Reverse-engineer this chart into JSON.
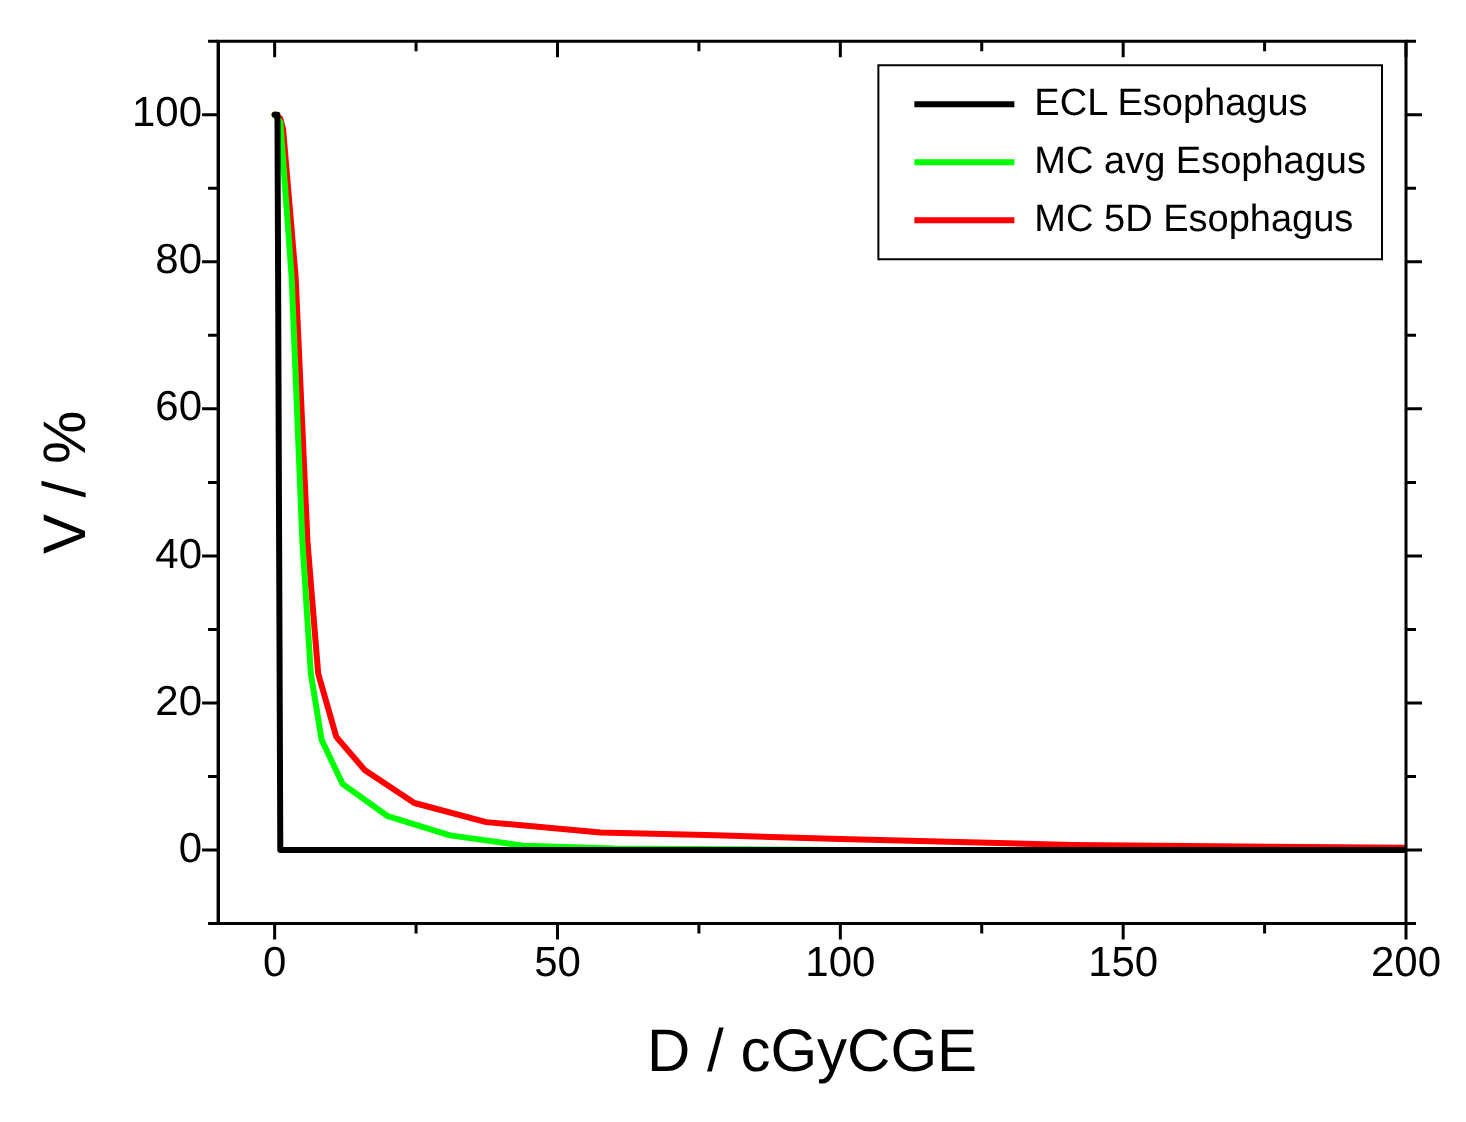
{
  "chart_data": {
    "type": "line",
    "xlabel": "D / cGyCGE",
    "ylabel": "V / %",
    "xlim": [
      -10,
      200
    ],
    "xticks": [
      0,
      {
        "value": 25,
        "label": null
      },
      50,
      {
        "value": 75,
        "label": null
      },
      100,
      {
        "value": 125,
        "label": null
      },
      150,
      {
        "value": 175,
        "label": null
      },
      200
    ],
    "ylim": [
      -10,
      110
    ],
    "yticks": [
      {
        "value": -10,
        "label": null
      },
      0,
      {
        "value": 10,
        "label": null
      },
      20,
      {
        "value": 30,
        "label": null
      },
      40,
      {
        "value": 50,
        "label": null
      },
      60,
      {
        "value": 70,
        "label": null
      },
      80,
      {
        "value": 90,
        "label": null
      },
      100,
      {
        "value": 110,
        "label": null
      }
    ],
    "grid": false,
    "legend": "top right",
    "marker": "none",
    "line_style": "solid",
    "series": [
      {
        "name": "ECL Esophagus",
        "color": "#000000",
        "x": [
          0,
          0.5,
          1,
          200
        ],
        "values": [
          100,
          100,
          0,
          0
        ]
      },
      {
        "name": "MC avg Esophagus",
        "color": "#00ff00",
        "x": [
          0,
          1,
          3,
          4.9,
          6.4,
          8.3,
          12,
          20,
          31,
          44,
          60,
          100,
          200
        ],
        "values": [
          100,
          99,
          78,
          42,
          24,
          15,
          9,
          4.6,
          2,
          0.6,
          0.2,
          0,
          0
        ]
      },
      {
        "name": "MC 5D Esophagus",
        "color": "#ff0000",
        "x": [
          0,
          1,
          1.5,
          3.7,
          5.8,
          7.7,
          10.9,
          15.9,
          24.7,
          37.4,
          57.6,
          78,
          100,
          141,
          200
        ],
        "values": [
          100,
          99.5,
          98,
          78,
          42,
          24,
          15.4,
          10.9,
          6.4,
          3.8,
          2.4,
          2,
          1.5,
          0.7,
          0.3
        ]
      }
    ]
  }
}
